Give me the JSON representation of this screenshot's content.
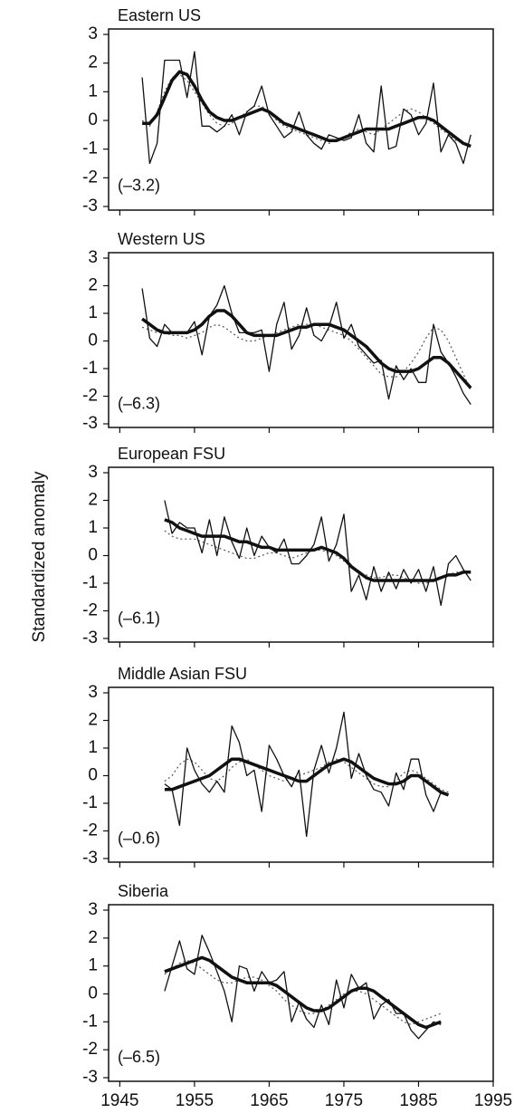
{
  "ylabel": "Standardized anomaly",
  "chart_data": [
    {
      "type": "line",
      "title": "Eastern US",
      "annotation": "(–3.2)",
      "x": [
        1948,
        1949,
        1950,
        1951,
        1952,
        1953,
        1954,
        1955,
        1956,
        1957,
        1958,
        1959,
        1960,
        1961,
        1962,
        1963,
        1964,
        1965,
        1966,
        1967,
        1968,
        1969,
        1970,
        1971,
        1972,
        1973,
        1974,
        1975,
        1976,
        1977,
        1978,
        1979,
        1980,
        1981,
        1982,
        1983,
        1984,
        1985,
        1986,
        1987,
        1988,
        1989,
        1990,
        1991,
        1992
      ],
      "series": [
        {
          "color": "#111111",
          "style": "thin",
          "values": [
            1.5,
            -1.5,
            -0.8,
            2.1,
            2.1,
            2.1,
            0.8,
            2.4,
            -0.2,
            -0.2,
            -0.4,
            -0.2,
            0.2,
            -0.5,
            0.3,
            0.5,
            1.2,
            0.2,
            -0.2,
            -0.6,
            -0.4,
            0.3,
            -0.5,
            -0.8,
            -1.0,
            -0.5,
            -0.6,
            -0.7,
            -0.6,
            0.2,
            -0.8,
            -1.1,
            1.2,
            -1.0,
            -0.9,
            0.4,
            0.2,
            -0.5,
            -0.1,
            1.3,
            -1.1,
            -0.5,
            -0.8,
            -1.5,
            -0.5
          ]
        },
        {
          "color": "#111111",
          "style": "thick",
          "values": [
            -0.1,
            -0.1,
            0.2,
            0.8,
            1.4,
            1.7,
            1.6,
            1.2,
            0.7,
            0.3,
            0.1,
            0.0,
            0.0,
            0.1,
            0.2,
            0.3,
            0.4,
            0.3,
            0.1,
            -0.1,
            -0.2,
            -0.3,
            -0.4,
            -0.5,
            -0.6,
            -0.7,
            -0.7,
            -0.6,
            -0.5,
            -0.4,
            -0.3,
            -0.3,
            -0.3,
            -0.3,
            -0.2,
            -0.1,
            0.0,
            0.1,
            0.1,
            0.0,
            -0.2,
            -0.4,
            -0.6,
            -0.8,
            -0.9
          ]
        },
        {
          "color": "#555555",
          "style": "dotted",
          "values": [
            0.0,
            -0.2,
            0.3,
            1.0,
            1.5,
            1.6,
            1.4,
            1.0,
            0.6,
            0.2,
            -0.1,
            -0.2,
            -0.1,
            0.1,
            0.3,
            0.5,
            0.5,
            0.3,
            0.0,
            -0.2,
            -0.3,
            -0.4,
            -0.5,
            -0.6,
            -0.7,
            -0.8,
            -0.7,
            -0.6,
            -0.4,
            -0.3,
            -0.4,
            -0.5,
            -0.3,
            -0.1,
            0.1,
            0.3,
            0.4,
            0.3,
            0.1,
            -0.1,
            -0.3,
            -0.5,
            -0.7,
            -0.8,
            -0.9
          ]
        }
      ],
      "xlim": [
        1943.5,
        1995
      ],
      "xticks": [
        1945,
        1955,
        1965,
        1975,
        1985,
        1995
      ],
      "ylim": [
        -3,
        3
      ],
      "yticks": [
        -3,
        -2,
        -1,
        0,
        1,
        2,
        3
      ]
    },
    {
      "type": "line",
      "title": "Western US",
      "annotation": "(–6.3)",
      "x": [
        1948,
        1949,
        1950,
        1951,
        1952,
        1953,
        1954,
        1955,
        1956,
        1957,
        1958,
        1959,
        1960,
        1961,
        1962,
        1963,
        1964,
        1965,
        1966,
        1967,
        1968,
        1969,
        1970,
        1971,
        1972,
        1973,
        1974,
        1975,
        1976,
        1977,
        1978,
        1979,
        1980,
        1981,
        1982,
        1983,
        1984,
        1985,
        1986,
        1987,
        1988,
        1989,
        1990,
        1991,
        1992
      ],
      "series": [
        {
          "color": "#111111",
          "style": "thin",
          "values": [
            1.9,
            0.1,
            -0.2,
            0.6,
            0.3,
            0.3,
            0.3,
            0.7,
            -0.5,
            0.9,
            1.3,
            2.0,
            1.0,
            0.3,
            0.3,
            0.3,
            0.4,
            -1.1,
            0.6,
            1.4,
            -0.3,
            0.2,
            1.2,
            0.2,
            0.0,
            0.5,
            1.4,
            0.1,
            0.6,
            -0.2,
            -0.5,
            -0.8,
            -0.7,
            -2.1,
            -0.9,
            -1.4,
            -1.0,
            -1.5,
            -1.5,
            0.6,
            -0.4,
            -0.8,
            -1.3,
            -1.9,
            -2.3
          ]
        },
        {
          "color": "#111111",
          "style": "thick",
          "values": [
            0.8,
            0.6,
            0.4,
            0.3,
            0.3,
            0.3,
            0.3,
            0.4,
            0.6,
            0.9,
            1.1,
            1.1,
            0.9,
            0.6,
            0.3,
            0.2,
            0.2,
            0.2,
            0.2,
            0.3,
            0.4,
            0.5,
            0.5,
            0.6,
            0.6,
            0.6,
            0.5,
            0.4,
            0.2,
            0.0,
            -0.2,
            -0.5,
            -0.8,
            -1.0,
            -1.1,
            -1.1,
            -1.1,
            -1.0,
            -0.8,
            -0.6,
            -0.6,
            -0.8,
            -1.1,
            -1.4,
            -1.7
          ]
        },
        {
          "color": "#555555",
          "style": "dotted",
          "values": [
            0.5,
            0.4,
            0.3,
            0.3,
            0.2,
            0.2,
            0.1,
            0.2,
            0.3,
            0.5,
            0.6,
            0.5,
            0.3,
            0.1,
            0.0,
            0.0,
            0.1,
            0.2,
            0.3,
            0.4,
            0.5,
            0.6,
            0.6,
            0.6,
            0.5,
            0.4,
            0.3,
            0.2,
            0.0,
            -0.3,
            -0.6,
            -0.9,
            -1.2,
            -1.3,
            -1.3,
            -1.1,
            -0.8,
            -0.4,
            0.1,
            0.5,
            0.4,
            0.0,
            -0.6,
            -1.2,
            -1.8
          ]
        }
      ],
      "xlim": [
        1943.5,
        1995
      ],
      "xticks": [
        1945,
        1955,
        1965,
        1975,
        1985,
        1995
      ],
      "ylim": [
        -3,
        3
      ],
      "yticks": [
        -3,
        -2,
        -1,
        0,
        1,
        2,
        3
      ]
    },
    {
      "type": "line",
      "title": "European FSU",
      "annotation": "(–6.1)",
      "x": [
        1951,
        1952,
        1953,
        1954,
        1955,
        1956,
        1957,
        1958,
        1959,
        1960,
        1961,
        1962,
        1963,
        1964,
        1965,
        1966,
        1967,
        1968,
        1969,
        1970,
        1971,
        1972,
        1973,
        1974,
        1975,
        1976,
        1977,
        1978,
        1979,
        1980,
        1981,
        1982,
        1983,
        1984,
        1985,
        1986,
        1987,
        1988,
        1989,
        1990,
        1991,
        1992
      ],
      "series": [
        {
          "color": "#111111",
          "style": "thin",
          "values": [
            2.0,
            0.8,
            1.2,
            1.0,
            1.0,
            0.1,
            1.3,
            0.0,
            1.4,
            0.5,
            -0.1,
            1.0,
            0.0,
            0.7,
            0.3,
            0.1,
            0.6,
            -0.3,
            -0.3,
            0.0,
            0.4,
            1.4,
            -0.2,
            0.4,
            1.5,
            -1.3,
            -0.7,
            -1.6,
            -0.4,
            -1.3,
            -0.6,
            -1.2,
            -0.5,
            -1.0,
            -0.5,
            -1.3,
            -0.4,
            -1.8,
            -0.3,
            0.0,
            -0.5,
            -0.9
          ]
        },
        {
          "color": "#111111",
          "style": "thick",
          "values": [
            1.3,
            1.2,
            1.0,
            0.9,
            0.8,
            0.7,
            0.7,
            0.7,
            0.7,
            0.6,
            0.5,
            0.5,
            0.4,
            0.3,
            0.3,
            0.2,
            0.2,
            0.2,
            0.2,
            0.2,
            0.2,
            0.3,
            0.2,
            0.1,
            -0.1,
            -0.4,
            -0.6,
            -0.8,
            -0.9,
            -0.9,
            -0.9,
            -0.9,
            -0.9,
            -0.9,
            -0.9,
            -0.9,
            -0.9,
            -0.8,
            -0.7,
            -0.7,
            -0.6,
            -0.6
          ]
        },
        {
          "color": "#555555",
          "style": "dotted",
          "values": [
            0.9,
            0.7,
            0.6,
            0.6,
            0.6,
            0.5,
            0.4,
            0.3,
            0.2,
            0.1,
            0.0,
            -0.1,
            -0.1,
            0.0,
            0.1,
            0.1,
            0.0,
            -0.1,
            0.0,
            0.1,
            0.2,
            0.2,
            0.1,
            0.0,
            -0.2,
            -0.4,
            -0.6,
            -0.7,
            -0.8,
            -0.8,
            -0.7,
            -0.7,
            -0.8,
            -0.9,
            -1.0,
            -1.0,
            -0.9,
            -0.8,
            -0.7,
            -0.6,
            -0.6,
            -0.6
          ]
        }
      ],
      "xlim": [
        1943.5,
        1995
      ],
      "xticks": [
        1945,
        1955,
        1965,
        1975,
        1985,
        1995
      ],
      "ylim": [
        -3,
        3
      ],
      "yticks": [
        -3,
        -2,
        -1,
        0,
        1,
        2,
        3
      ]
    },
    {
      "type": "line",
      "title": "Middle Asian FSU",
      "annotation": "(–0.6)",
      "x": [
        1951,
        1952,
        1953,
        1954,
        1955,
        1956,
        1957,
        1958,
        1959,
        1960,
        1961,
        1962,
        1963,
        1964,
        1965,
        1966,
        1967,
        1968,
        1969,
        1970,
        1971,
        1972,
        1973,
        1974,
        1975,
        1976,
        1977,
        1978,
        1979,
        1980,
        1981,
        1982,
        1983,
        1984,
        1985,
        1986,
        1987,
        1988,
        1989
      ],
      "series": [
        {
          "color": "#111111",
          "style": "thin",
          "values": [
            -0.3,
            -0.5,
            -1.8,
            1.0,
            0.2,
            -0.3,
            -0.6,
            -0.2,
            -0.6,
            1.8,
            1.2,
            0.0,
            0.2,
            -1.3,
            1.1,
            0.6,
            0.0,
            -0.4,
            0.2,
            -2.2,
            0.2,
            1.1,
            0.1,
            1.0,
            2.3,
            -0.1,
            0.8,
            0.0,
            -0.5,
            -0.6,
            -1.1,
            0.1,
            -0.5,
            0.6,
            0.6,
            -0.7,
            -1.3,
            -0.6,
            -0.7
          ]
        },
        {
          "color": "#111111",
          "style": "thick",
          "values": [
            -0.5,
            -0.5,
            -0.4,
            -0.3,
            -0.2,
            -0.1,
            0.0,
            0.2,
            0.4,
            0.6,
            0.6,
            0.5,
            0.4,
            0.3,
            0.2,
            0.1,
            0.0,
            -0.1,
            -0.2,
            -0.2,
            0.0,
            0.2,
            0.4,
            0.5,
            0.6,
            0.5,
            0.3,
            0.1,
            -0.1,
            -0.2,
            -0.3,
            -0.3,
            -0.2,
            0.0,
            0.0,
            -0.2,
            -0.4,
            -0.6,
            -0.7
          ]
        },
        {
          "color": "#555555",
          "style": "dotted",
          "values": [
            -0.2,
            0.0,
            0.4,
            0.6,
            0.5,
            0.2,
            -0.1,
            -0.2,
            0.0,
            0.3,
            0.5,
            0.6,
            0.4,
            0.2,
            0.0,
            -0.1,
            -0.2,
            -0.1,
            0.0,
            0.1,
            0.2,
            0.3,
            0.5,
            0.6,
            0.5,
            0.3,
            0.1,
            -0.1,
            -0.3,
            -0.4,
            -0.4,
            -0.2,
            0.1,
            0.2,
            0.1,
            -0.1,
            -0.3,
            -0.5,
            -0.6
          ]
        }
      ],
      "xlim": [
        1943.5,
        1995
      ],
      "xticks": [
        1945,
        1955,
        1965,
        1975,
        1985,
        1995
      ],
      "ylim": [
        -3,
        3
      ],
      "yticks": [
        -3,
        -2,
        -1,
        0,
        1,
        2,
        3
      ]
    },
    {
      "type": "line",
      "title": "Siberia",
      "annotation": "(–6.5)",
      "x": [
        1951,
        1952,
        1953,
        1954,
        1955,
        1956,
        1957,
        1958,
        1959,
        1960,
        1961,
        1962,
        1963,
        1964,
        1965,
        1966,
        1967,
        1968,
        1969,
        1970,
        1971,
        1972,
        1973,
        1974,
        1975,
        1976,
        1977,
        1978,
        1979,
        1980,
        1981,
        1982,
        1983,
        1984,
        1985,
        1986,
        1987,
        1988
      ],
      "series": [
        {
          "color": "#111111",
          "style": "thin",
          "values": [
            0.1,
            1.0,
            1.9,
            0.9,
            0.7,
            2.1,
            1.5,
            0.8,
            0.1,
            -1.0,
            1.0,
            0.9,
            0.1,
            0.8,
            0.4,
            0.5,
            0.8,
            -1.0,
            -0.3,
            -0.9,
            -1.2,
            -0.4,
            -1.1,
            0.5,
            -0.5,
            0.7,
            0.2,
            0.4,
            -0.9,
            -0.4,
            -0.2,
            -0.7,
            -0.7,
            -1.3,
            -1.6,
            -1.3,
            -1.0,
            -1.1
          ]
        },
        {
          "color": "#111111",
          "style": "thick",
          "values": [
            0.8,
            0.9,
            1.0,
            1.1,
            1.2,
            1.3,
            1.2,
            1.0,
            0.8,
            0.6,
            0.5,
            0.4,
            0.4,
            0.4,
            0.4,
            0.3,
            0.1,
            -0.1,
            -0.3,
            -0.5,
            -0.6,
            -0.6,
            -0.5,
            -0.3,
            -0.1,
            0.1,
            0.2,
            0.2,
            0.1,
            -0.1,
            -0.3,
            -0.5,
            -0.7,
            -0.9,
            -1.1,
            -1.2,
            -1.1,
            -1.0
          ]
        },
        {
          "color": "#555555",
          "style": "dotted",
          "values": [
            0.7,
            0.9,
            1.1,
            1.2,
            1.1,
            0.9,
            0.7,
            0.5,
            0.4,
            0.4,
            0.5,
            0.6,
            0.6,
            0.5,
            0.3,
            0.1,
            -0.2,
            -0.4,
            -0.6,
            -0.7,
            -0.7,
            -0.6,
            -0.4,
            -0.2,
            0.0,
            0.1,
            0.1,
            0.0,
            -0.2,
            -0.4,
            -0.6,
            -0.8,
            -1.0,
            -1.1,
            -1.0,
            -0.9,
            -0.8,
            -0.7
          ]
        }
      ],
      "xlim": [
        1943.5,
        1995
      ],
      "xticks": [
        1945,
        1955,
        1965,
        1975,
        1985,
        1995
      ],
      "ylim": [
        -3,
        3
      ],
      "yticks": [
        -3,
        -2,
        -1,
        0,
        1,
        2,
        3
      ]
    }
  ]
}
